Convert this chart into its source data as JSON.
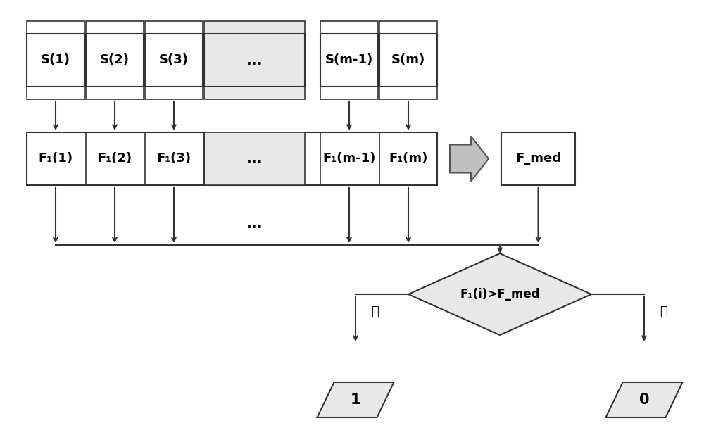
{
  "bg_color": "#ffffff",
  "box_fill_white": "#ffffff",
  "box_fill_gray": "#e8e8e8",
  "box_stroke": "#333333",
  "arrow_color": "#333333",
  "big_arrow_fill": "#c0c0c0",
  "diamond_fill": "#e8e8e8",
  "parallelogram_fill": "#e8e8e8",
  "row1_labels": [
    "S(1)",
    "S(2)",
    "S(3)",
    "...",
    "S(m-1)",
    "S(m)"
  ],
  "row2_labels": [
    "F₁(1)",
    "F₁(2)",
    "F₁(3)",
    "...",
    "F₁(m-1)",
    "F₁(m)"
  ],
  "fmed_label": "F_med",
  "diamond_label": "F₁(i)>F_med",
  "yes_label": "是",
  "no_label": "否",
  "output1_label": "1",
  "output0_label": "0",
  "dots_row3": "...",
  "font_size_main": 13,
  "font_size_small": 11
}
